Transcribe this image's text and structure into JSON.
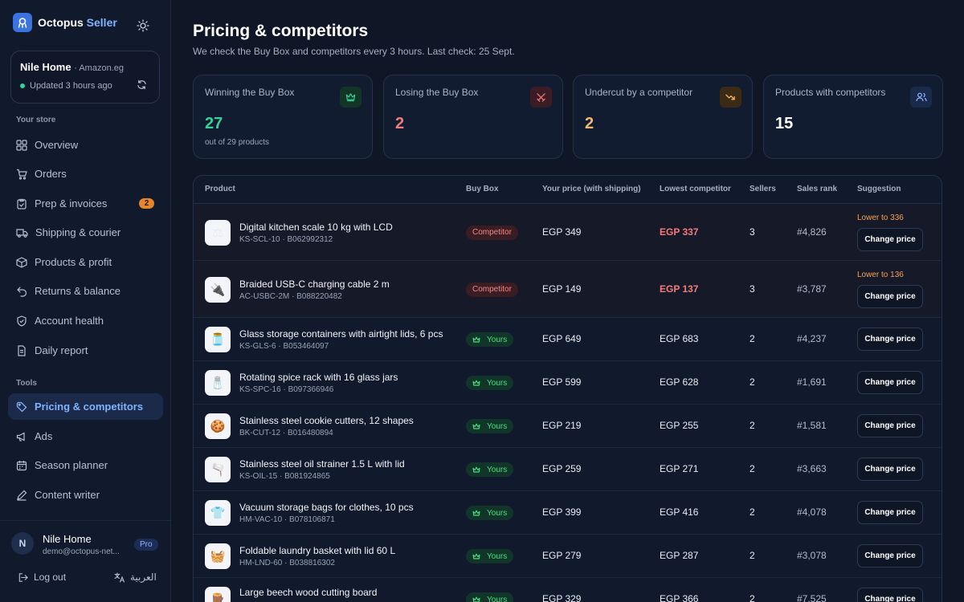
{
  "brand": {
    "name_primary": "Octopus",
    "name_accent": "Seller"
  },
  "store": {
    "name": "Nile Home",
    "marketplace": "Amazon.eg",
    "status": "Updated 3 hours ago"
  },
  "sidebar": {
    "section_store": "Your store",
    "section_tools": "Tools",
    "store_items": [
      {
        "label": "Overview",
        "icon": "grid-icon"
      },
      {
        "label": "Orders",
        "icon": "cart-icon"
      },
      {
        "label": "Prep & invoices",
        "icon": "clipboard-icon",
        "badge": "2"
      },
      {
        "label": "Shipping & courier",
        "icon": "truck-icon"
      },
      {
        "label": "Products & profit",
        "icon": "box-icon"
      },
      {
        "label": "Returns & balance",
        "icon": "return-icon"
      },
      {
        "label": "Account health",
        "icon": "shield-icon"
      },
      {
        "label": "Daily report",
        "icon": "document-icon"
      }
    ],
    "tool_items": [
      {
        "label": "Pricing & competitors",
        "icon": "tag-icon",
        "active": true
      },
      {
        "label": "Ads",
        "icon": "megaphone-icon"
      },
      {
        "label": "Season planner",
        "icon": "calendar-icon"
      },
      {
        "label": "Content writer",
        "icon": "pen-icon"
      }
    ]
  },
  "user": {
    "initial": "N",
    "name": "Nile Home",
    "email": "demo@octopus-net...",
    "plan": "Pro",
    "logout": "Log out",
    "language": "العربية"
  },
  "page": {
    "title": "Pricing & competitors",
    "subtitle": "We check the Buy Box and competitors every 3 hours. Last check: 25 Sept."
  },
  "stats": [
    {
      "label": "Winning the Buy Box",
      "value": "27",
      "note": "out of 29 products",
      "icon": "crown-icon",
      "color": "#34d399"
    },
    {
      "label": "Losing the Buy Box",
      "value": "2",
      "note": "",
      "icon": "swords-icon",
      "color": "#f47a7a"
    },
    {
      "label": "Undercut by a competitor",
      "value": "2",
      "note": "",
      "icon": "trend-down-icon",
      "color": "#f5b56b"
    },
    {
      "label": "Products with competitors",
      "value": "15",
      "note": "",
      "icon": "users-icon",
      "color": "#ffffff"
    }
  ],
  "table": {
    "headers": [
      "Product",
      "Buy Box",
      "Your price (with shipping)",
      "Lowest competitor",
      "Sellers",
      "Sales rank",
      "Suggestion"
    ],
    "action_label": "Change price",
    "rows": [
      {
        "name": "Digital kitchen scale 10 kg with LCD",
        "sku": "KS-SCL-10 · B062992312",
        "buybox": "Competitor",
        "price": "EGP 349",
        "lowest": "EGP 337",
        "sellers": "3",
        "rank": "#4,826",
        "suggestion": "Lower to 336"
      },
      {
        "name": "Braided USB-C charging cable 2 m",
        "sku": "AC-USBC-2M · B088220482",
        "buybox": "Competitor",
        "price": "EGP 149",
        "lowest": "EGP 137",
        "sellers": "3",
        "rank": "#3,787",
        "suggestion": "Lower to 136"
      },
      {
        "name": "Glass storage containers with airtight lids, 6 pcs",
        "sku": "KS-GLS-6 · B053464097",
        "buybox": "Yours",
        "price": "EGP 649",
        "lowest": "EGP 683",
        "sellers": "2",
        "rank": "#4,237",
        "suggestion": ""
      },
      {
        "name": "Rotating spice rack with 16 glass jars",
        "sku": "KS-SPC-16 · B097366946",
        "buybox": "Yours",
        "price": "EGP 599",
        "lowest": "EGP 628",
        "sellers": "2",
        "rank": "#1,691",
        "suggestion": ""
      },
      {
        "name": "Stainless steel cookie cutters, 12 shapes",
        "sku": "BK-CUT-12 · B016480894",
        "buybox": "Yours",
        "price": "EGP 219",
        "lowest": "EGP 255",
        "sellers": "2",
        "rank": "#1,581",
        "suggestion": ""
      },
      {
        "name": "Stainless steel oil strainer 1.5 L with lid",
        "sku": "KS-OIL-15 · B081924865",
        "buybox": "Yours",
        "price": "EGP 259",
        "lowest": "EGP 271",
        "sellers": "2",
        "rank": "#3,663",
        "suggestion": ""
      },
      {
        "name": "Vacuum storage bags for clothes, 10 pcs",
        "sku": "HM-VAC-10 · B078106871",
        "buybox": "Yours",
        "price": "EGP 399",
        "lowest": "EGP 416",
        "sellers": "2",
        "rank": "#4,078",
        "suggestion": ""
      },
      {
        "name": "Foldable laundry basket with lid 60 L",
        "sku": "HM-LND-60 · B038816302",
        "buybox": "Yours",
        "price": "EGP 279",
        "lowest": "EGP 287",
        "sellers": "2",
        "rank": "#3,078",
        "suggestion": ""
      },
      {
        "name": "Large beech wood cutting board",
        "sku": "",
        "buybox": "Yours",
        "price": "EGP 329",
        "lowest": "EGP 366",
        "sellers": "2",
        "rank": "#7,525",
        "suggestion": ""
      }
    ]
  }
}
